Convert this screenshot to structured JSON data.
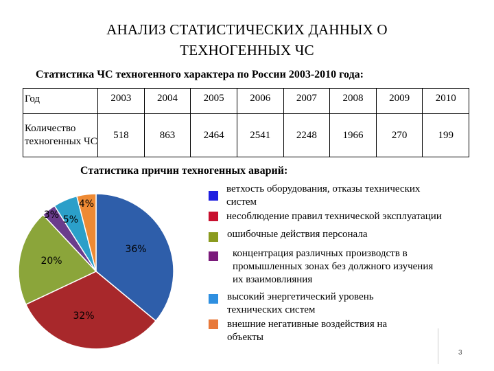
{
  "title": {
    "line1": "АНАЛИЗ СТАТИСТИЧЕСКИХ ДАННЫХ О",
    "line2": "ТЕХНОГЕННЫХ ЧС"
  },
  "subtitle": "Статистика ЧС техногенного характера по России 2003-2010 года:",
  "table": {
    "header_label": "Год",
    "row_label": "Количество техногенных ЧС",
    "years": [
      "2003",
      "2004",
      "2005",
      "2006",
      "2007",
      "2008",
      "2009",
      "2010"
    ],
    "counts": [
      "518",
      "863",
      "2464",
      "2541",
      "2248",
      "1966",
      "270",
      "199"
    ]
  },
  "chart_title": "Статистика причин техногенных аварий:",
  "chart_data": {
    "type": "pie",
    "title": "Статистика причин техногенных аварий:",
    "slices": [
      {
        "label": "ветхость оборудования, отказы технических систем",
        "value": 36,
        "display": "36%",
        "color": "#2E5EAA"
      },
      {
        "label": "несоблюдение правил технической эксплуатации",
        "value": 32,
        "display": "32%",
        "color": "#A8282B"
      },
      {
        "label": "ошибочные действия персонала",
        "value": 20,
        "display": "20%",
        "color": "#8BA53A"
      },
      {
        "label": "концентрация различных производств в промышленных зонах без должного изучения их взаимовлияния",
        "value": 3,
        "display": "3%",
        "color": "#6A3C8C"
      },
      {
        "label": "высокий энергетический уровень технических систем",
        "value": 5,
        "display": "5%",
        "color": "#2B9FC9"
      },
      {
        "label": "внешние негативные воздействия на объекты",
        "value": 4,
        "display": "4%",
        "color": "#EE8A34"
      }
    ],
    "legend_position": "right"
  },
  "legend": [
    {
      "lines": [
        "ветхость оборудования, отказы технических",
        "систем"
      ],
      "color": "#1F1FE0"
    },
    {
      "lines": [
        "несоблюдение правил технической эксплуатации"
      ],
      "color": "#C8102E"
    },
    {
      "lines": [
        "ошибочные действия персонала"
      ],
      "color": "#8A9A1E"
    },
    {
      "lines": [
        "концентрация различных производств в",
        "промышленных зонах без должного изучения",
        "их взаимовлияния"
      ],
      "color": "#7A1A7A"
    },
    {
      "lines": [
        "высокий энергетический уровень",
        "технических систем"
      ],
      "color": "#2E8FE0"
    },
    {
      "lines": [
        "внешние негативные воздействия на",
        "объекты"
      ],
      "color": "#E8793A"
    }
  ],
  "page_number": "3"
}
